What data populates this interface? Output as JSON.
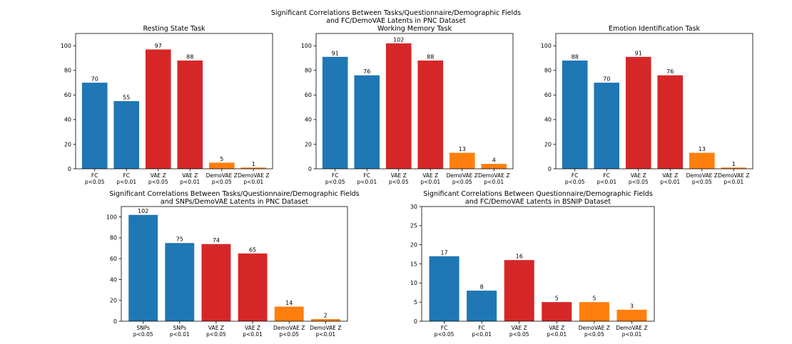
{
  "suptitle": [
    "Significant Correlations Between Tasks/Questionnaire/Demographic Fields",
    "and FC/DemoVAE Latents in PNC Dataset"
  ],
  "colors": {
    "fc": "#1f77b4",
    "vae": "#d62728",
    "demovae": "#ff7f0e"
  },
  "chart_data": [
    {
      "type": "bar",
      "title": [
        "Resting State Task"
      ],
      "categories": [
        [
          "FC",
          "p<0.05"
        ],
        [
          "FC",
          "p<0.01"
        ],
        [
          "VAE Z",
          "p<0.05"
        ],
        [
          "VAE Z",
          "p<0.01"
        ],
        [
          "DemoVAE Z",
          "p<0.05"
        ],
        [
          "DemoVAE Z",
          "p<0.01"
        ]
      ],
      "values": [
        70,
        55,
        97,
        88,
        5,
        1
      ],
      "colors": [
        "fc",
        "fc",
        "vae",
        "vae",
        "demovae",
        "demovae"
      ],
      "ylim": [
        0,
        110
      ],
      "yticks": [
        0,
        20,
        40,
        60,
        80,
        100
      ],
      "grid": false
    },
    {
      "type": "bar",
      "title": [
        "Working Memory Task"
      ],
      "categories": [
        [
          "FC",
          "p<0.05"
        ],
        [
          "FC",
          "p<0.01"
        ],
        [
          "VAE Z",
          "p<0.05"
        ],
        [
          "VAE Z",
          "p<0.01"
        ],
        [
          "DemoVAE Z",
          "p<0.05"
        ],
        [
          "DemoVAE Z",
          "p<0.01"
        ]
      ],
      "values": [
        91,
        76,
        102,
        88,
        13,
        4
      ],
      "colors": [
        "fc",
        "fc",
        "vae",
        "vae",
        "demovae",
        "demovae"
      ],
      "ylim": [
        0,
        110
      ],
      "yticks": [
        0,
        20,
        40,
        60,
        80,
        100
      ],
      "grid": false
    },
    {
      "type": "bar",
      "title": [
        "Emotion Identification Task"
      ],
      "categories": [
        [
          "FC",
          "p<0.05"
        ],
        [
          "FC",
          "p<0.01"
        ],
        [
          "VAE Z",
          "p<0.05"
        ],
        [
          "VAE Z",
          "p<0.01"
        ],
        [
          "DemoVAE Z",
          "p<0.05"
        ],
        [
          "DemoVAE Z",
          "p<0.01"
        ]
      ],
      "values": [
        88,
        70,
        91,
        76,
        13,
        1
      ],
      "colors": [
        "fc",
        "fc",
        "vae",
        "vae",
        "demovae",
        "demovae"
      ],
      "ylim": [
        0,
        110
      ],
      "yticks": [
        0,
        20,
        40,
        60,
        80,
        100
      ],
      "grid": false
    },
    {
      "type": "bar",
      "title": [
        "Significant Correlations Between Tasks/Questionnaire/Demographic Fields",
        "and SNPs/DemoVAE Latents in PNC Dataset"
      ],
      "categories": [
        [
          "SNPs",
          "p<0.05"
        ],
        [
          "SNPs",
          "p<0.01"
        ],
        [
          "VAE Z",
          "p<0.05"
        ],
        [
          "VAE Z",
          "p<0.01"
        ],
        [
          "DemoVAE Z",
          "p<0.05"
        ],
        [
          "DemoVAE Z",
          "p<0.01"
        ]
      ],
      "values": [
        102,
        75,
        74,
        65,
        14,
        2
      ],
      "colors": [
        "fc",
        "fc",
        "vae",
        "vae",
        "demovae",
        "demovae"
      ],
      "ylim": [
        0,
        110
      ],
      "yticks": [
        0,
        20,
        40,
        60,
        80,
        100
      ],
      "grid": false
    },
    {
      "type": "bar",
      "title": [
        "Significant Correlations Between Questionnaire/Demographic Fields",
        "and FC/DemoVAE Latents in BSNIP Dataset"
      ],
      "categories": [
        [
          "FC",
          "p<0.05"
        ],
        [
          "FC",
          "p<0.01"
        ],
        [
          "VAE Z",
          "p<0.05"
        ],
        [
          "VAE Z",
          "p<0.01"
        ],
        [
          "DemoVAE Z",
          "p<0.05"
        ],
        [
          "DemoVAE Z",
          "p<0.01"
        ]
      ],
      "values": [
        17,
        8,
        16,
        5,
        5,
        3
      ],
      "colors": [
        "fc",
        "fc",
        "vae",
        "vae",
        "demovae",
        "demovae"
      ],
      "ylim": [
        0,
        30
      ],
      "yticks": [
        0,
        5,
        10,
        15,
        20,
        25,
        30
      ],
      "grid": false
    }
  ]
}
